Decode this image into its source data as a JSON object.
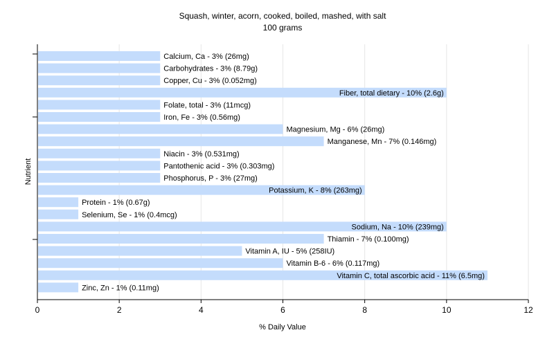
{
  "chart_data": {
    "type": "bar",
    "orientation": "horizontal",
    "title": "Squash, winter, acorn, cooked, boiled, mashed, with salt",
    "subtitle": "100 grams",
    "xlabel": "% Daily Value",
    "ylabel": "Nutrient",
    "xlim": [
      0,
      12
    ],
    "xticks": [
      0,
      2,
      4,
      6,
      8,
      10,
      12
    ],
    "grid": true,
    "bar_color": "#c4dcfc",
    "categories": [
      "Calcium, Ca",
      "Carbohydrates",
      "Copper, Cu",
      "Fiber, total dietary",
      "Folate, total",
      "Iron, Fe",
      "Magnesium, Mg",
      "Manganese, Mn",
      "Niacin",
      "Pantothenic acid",
      "Phosphorus, P",
      "Potassium, K",
      "Protein",
      "Selenium, Se",
      "Sodium, Na",
      "Thiamin",
      "Vitamin A, IU",
      "Vitamin B-6",
      "Vitamin C, total ascorbic acid",
      "Zinc, Zn"
    ],
    "values": [
      3,
      3,
      3,
      10,
      3,
      3,
      6,
      7,
      3,
      3,
      3,
      8,
      1,
      1,
      10,
      7,
      5,
      6,
      11,
      1
    ],
    "labels": [
      "Calcium, Ca - 3% (26mg)",
      "Carbohydrates - 3% (8.79g)",
      "Copper, Cu - 3% (0.052mg)",
      "Fiber, total dietary - 10% (2.6g)",
      "Folate, total - 3% (11mcg)",
      "Iron, Fe - 3% (0.56mg)",
      "Magnesium, Mg - 6% (26mg)",
      "Manganese, Mn - 7% (0.146mg)",
      "Niacin - 3% (0.531mg)",
      "Pantothenic acid - 3% (0.303mg)",
      "Phosphorus, P - 3% (27mg)",
      "Potassium, K - 8% (263mg)",
      "Protein - 1% (0.67g)",
      "Selenium, Se - 1% (0.4mcg)",
      "Sodium, Na - 10% (239mg)",
      "Thiamin - 7% (0.100mg)",
      "Vitamin A, IU - 5% (258IU)",
      "Vitamin B-6 - 6% (0.117mg)",
      "Vitamin C, total ascorbic acid - 11% (6.5mg)",
      "Zinc, Zn - 1% (0.11mg)"
    ]
  }
}
